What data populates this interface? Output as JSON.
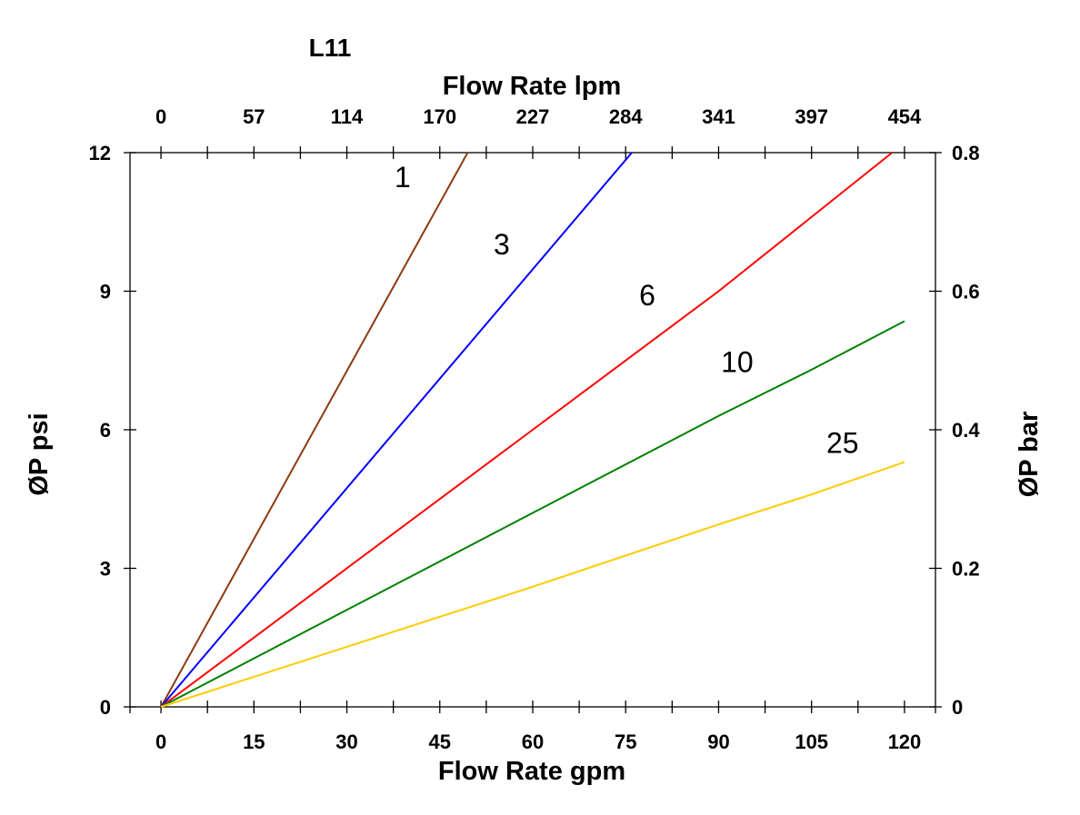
{
  "chart_data": {
    "type": "line",
    "title": "L11",
    "xlabel": "Flow Rate gpm",
    "x2label": "Flow Rate lpm",
    "ylabel": "ØP psi",
    "y2label": "ØP bar",
    "xlim": [
      -5,
      125
    ],
    "ylim": [
      0,
      12
    ],
    "y2lim": [
      0,
      0.8
    ],
    "grid": false,
    "x_ticks": [
      0,
      15,
      30,
      45,
      60,
      75,
      90,
      105,
      120
    ],
    "x_tick_labels": [
      "0",
      "15",
      "30",
      "45",
      "60",
      "75",
      "90",
      "105",
      "120"
    ],
    "x2_tick_labels": [
      "0",
      "57",
      "114",
      "170",
      "227",
      "284",
      "341",
      "397",
      "454"
    ],
    "y_ticks": [
      0,
      3,
      6,
      9,
      12
    ],
    "y_tick_labels": [
      "0",
      "3",
      "6",
      "9",
      "12"
    ],
    "y2_tick_labels": [
      "0",
      "0.2",
      "0.4",
      "0.6",
      "0.8"
    ],
    "series": [
      {
        "name": "1",
        "color": "#8B3A0F",
        "x": [
          0,
          49.5
        ],
        "y": [
          0,
          12
        ]
      },
      {
        "name": "3",
        "color": "#0000FF",
        "x": [
          0,
          76
        ],
        "y": [
          0,
          12
        ]
      },
      {
        "name": "6",
        "color": "#FF0000",
        "x": [
          0,
          30,
          60,
          90,
          118
        ],
        "y": [
          0,
          3,
          6,
          9,
          12
        ]
      },
      {
        "name": "10",
        "color": "#008000",
        "x": [
          0,
          30,
          60,
          90,
          105,
          120
        ],
        "y": [
          0,
          2.1,
          4.2,
          6.3,
          7.3,
          8.35
        ]
      },
      {
        "name": "25",
        "color": "#FFCC00",
        "x": [
          0,
          30,
          60,
          90,
          105,
          120
        ],
        "y": [
          0,
          1.3,
          2.6,
          3.95,
          4.6,
          5.3
        ]
      }
    ],
    "series_labels": [
      {
        "text": "1",
        "x": 39,
        "y": 11.25
      },
      {
        "text": "3",
        "x": 55,
        "y": 9.8
      },
      {
        "text": "6",
        "x": 78.5,
        "y": 8.7
      },
      {
        "text": "10",
        "x": 93,
        "y": 7.25
      },
      {
        "text": "25",
        "x": 110,
        "y": 5.5
      }
    ]
  }
}
